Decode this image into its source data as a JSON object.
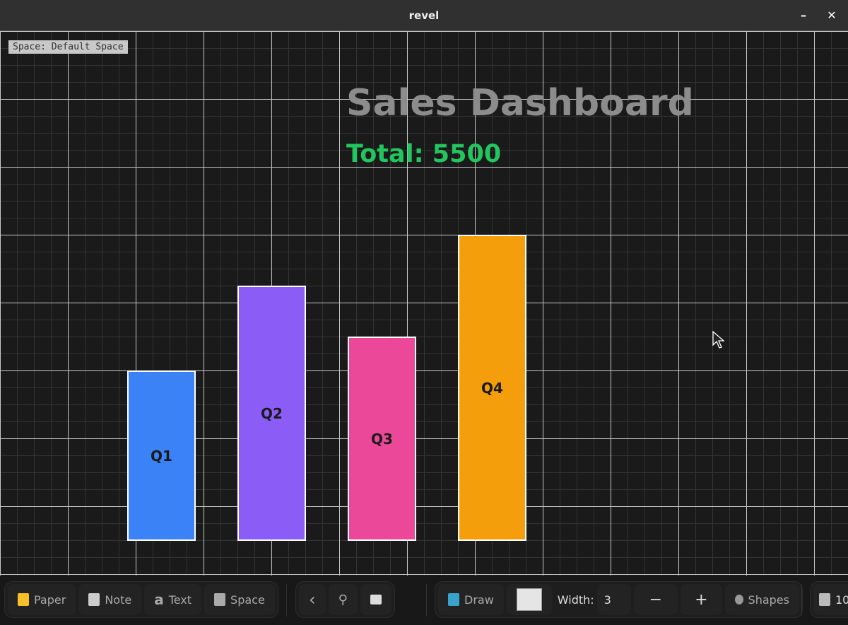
{
  "window": {
    "title": "revel",
    "minimize": "–",
    "close": "✕"
  },
  "canvas": {
    "space_label": "Space: Default Space",
    "title": "Sales Dashboard",
    "total": "Total: 5500"
  },
  "chart_data": {
    "type": "bar",
    "categories": [
      "Q1",
      "Q2",
      "Q3",
      "Q4"
    ],
    "values": [
      1000,
      1500,
      1200,
      1800
    ],
    "colors": [
      "#3b82f6",
      "#8b5cf6",
      "#ec4899",
      "#f59e0b"
    ]
  },
  "toolbar": {
    "paper": "Paper",
    "note": "Note",
    "text": "Text",
    "space": "Space",
    "back": "‹",
    "draw": "Draw",
    "width_label": "Width:",
    "width_value": "3",
    "minus": "−",
    "plus": "+",
    "shapes": "Shapes",
    "zoom": "10"
  }
}
